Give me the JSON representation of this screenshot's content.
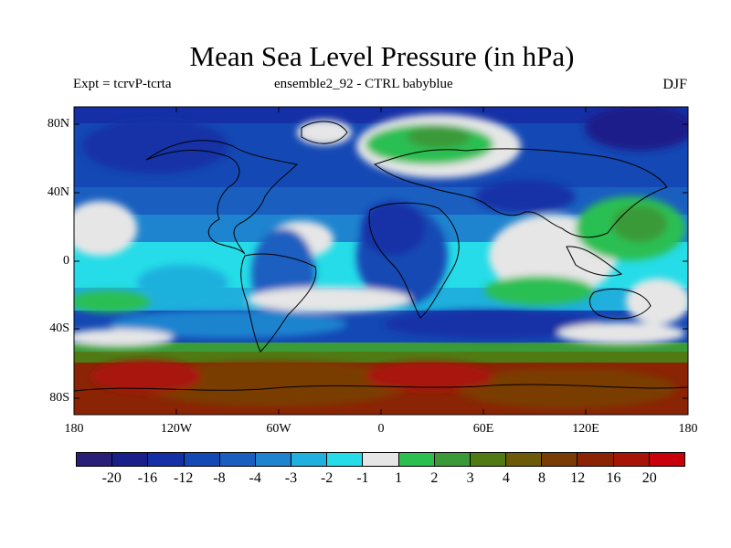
{
  "header": {
    "title": "Mean Sea Level Pressure (in hPa)",
    "left": "Expt = tcrvP-tcrta",
    "center": "ensemble2_92 - CTRL babyblue",
    "right": "DJF"
  },
  "axes": {
    "lat_ticks": [
      "80N",
      "40N",
      "0",
      "40S",
      "80S"
    ],
    "lon_ticks": [
      "180",
      "120W",
      "60W",
      "0",
      "60E",
      "120E",
      "180"
    ]
  },
  "colorbar": {
    "colors": [
      "#2a1f78",
      "#1a1f8a",
      "#1530a6",
      "#1448b4",
      "#1a5fc0",
      "#1f84cf",
      "#1fb0dd",
      "#25dce8",
      "#e6e6e6",
      "#2bbf52",
      "#3b9a38",
      "#4f7a14",
      "#6c5a08",
      "#7a3c06",
      "#8a2404",
      "#a81308",
      "#c8000c"
    ],
    "labels": [
      "-20",
      "-16",
      "-12",
      "-8",
      "-4",
      "-3",
      "-2",
      "-1",
      "1",
      "2",
      "3",
      "4",
      "8",
      "12",
      "16",
      "20"
    ]
  },
  "map_field": {
    "levels": [
      "-20",
      "-16",
      "-12",
      "-8",
      "-4",
      "-3",
      "-2",
      "-1",
      "1",
      "2",
      "3",
      "4",
      "8",
      "12",
      "16",
      "20"
    ],
    "band_rows": [
      {
        "lat_range": [
          90,
          80
        ],
        "value_hPa": -8
      },
      {
        "lat_range": [
          80,
          50
        ],
        "value_hPa": -4
      },
      {
        "lat_range": [
          50,
          30
        ],
        "value_hPa": -3
      },
      {
        "lat_range": [
          30,
          10
        ],
        "value_hPa": -2
      },
      {
        "lat_range": [
          10,
          -10
        ],
        "value_hPa": -1
      },
      {
        "lat_range": [
          -10,
          -30
        ],
        "value_hPa": -3
      },
      {
        "lat_range": [
          -30,
          -50
        ],
        "value_hPa": -8
      },
      {
        "lat_range": [
          -50,
          -60
        ],
        "value_hPa": 1
      },
      {
        "lat_range": [
          -60,
          -90
        ],
        "value_hPa": 12
      }
    ]
  }
}
